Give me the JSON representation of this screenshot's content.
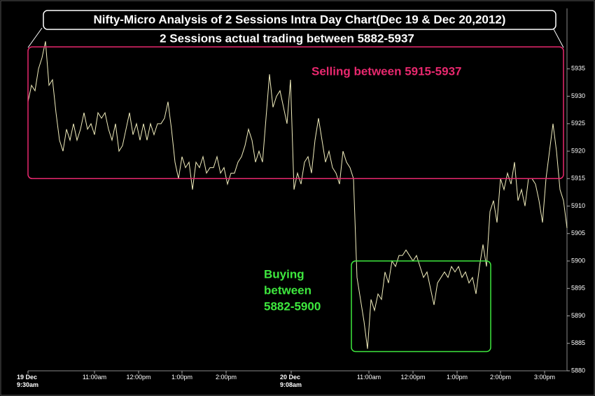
{
  "chart_data": {
    "type": "line",
    "title": "Nifty-Micro Analysis of 2 Sessions Intra Day Chart(Dec 19 & Dec 20,2012)",
    "subtitle": "2 Sessions actual trading between 5882-5937",
    "color": "#f2eebd",
    "values": [
      5929,
      5932,
      5931,
      5935,
      5937,
      5940,
      5932,
      5933,
      5927,
      5922,
      5920,
      5924,
      5922,
      5925,
      5922,
      5924,
      5927,
      5924,
      5925,
      5923,
      5927,
      5926,
      5927,
      5924,
      5922,
      5925,
      5920,
      5921,
      5924,
      5927,
      5923,
      5925,
      5922,
      5925,
      5922,
      5925,
      5923,
      5925,
      5925,
      5926,
      5929,
      5924,
      5918,
      5915,
      5919,
      5917,
      5918,
      5913,
      5918,
      5917,
      5919,
      5916,
      5917,
      5917,
      5919,
      5916,
      5917,
      5914,
      5916,
      5916,
      5918,
      5919,
      5921,
      5924,
      5922,
      5918,
      5920,
      5918,
      5926,
      5934,
      5928,
      5930,
      5931,
      5928,
      5925,
      5933,
      5913,
      5916,
      5914,
      5918,
      5919,
      5916,
      5922,
      5926,
      5922,
      5918,
      5920,
      5917,
      5916,
      5914,
      5920,
      5918,
      5917,
      5915,
      5897,
      5893,
      5889,
      5884,
      5893,
      5891,
      5894,
      5893,
      5898,
      5896,
      5900,
      5899,
      5901,
      5901,
      5902,
      5901,
      5900,
      5901,
      5899,
      5897,
      5898,
      5895,
      5892,
      5896,
      5897,
      5898,
      5897,
      5899,
      5898,
      5899,
      5897,
      5898,
      5896,
      5897,
      5894,
      5899,
      5903,
      5899,
      5909,
      5911,
      5907,
      5915,
      5913,
      5916,
      5914,
      5918,
      5911,
      5913,
      5910,
      5915,
      5915,
      5914,
      5911,
      5907,
      5915,
      5920,
      5925,
      5920,
      5913,
      5911,
      5906
    ],
    "xlim": [
      0,
      154
    ],
    "xticks": [
      {
        "value": 0,
        "label": "19 Dec\n9:30am"
      },
      {
        "value": 19,
        "label": "11:00am"
      },
      {
        "value": 31.6,
        "label": "12:00pm"
      },
      {
        "value": 44,
        "label": "1:00pm"
      },
      {
        "value": 56.6,
        "label": "2:00pm"
      },
      {
        "value": 75.2,
        "label": "20 Dec\n9:08am"
      },
      {
        "value": 97.4,
        "label": "11:00am"
      },
      {
        "value": 110,
        "label": "12:00pm"
      },
      {
        "value": 122.6,
        "label": "1:00pm"
      },
      {
        "value": 135,
        "label": "2:00pm"
      },
      {
        "value": 147.6,
        "label": "3:00pm"
      }
    ],
    "ylim": [
      5880,
      5946
    ],
    "yticks": [
      5880,
      5885,
      5890,
      5895,
      5900,
      5905,
      5910,
      5915,
      5920,
      5925,
      5930,
      5935
    ],
    "regions": [
      {
        "label": [
          "Selling between 5915-5937"
        ],
        "color": "#e8286e",
        "x": [
          0,
          153
        ],
        "y": [
          5915,
          5939
        ]
      },
      {
        "label": [
          "Buying",
          "between",
          "5882-5900"
        ],
        "color": "#3ee83e",
        "x": [
          92.4,
          132.2
        ],
        "y": [
          5883.5,
          5900
        ]
      }
    ]
  }
}
